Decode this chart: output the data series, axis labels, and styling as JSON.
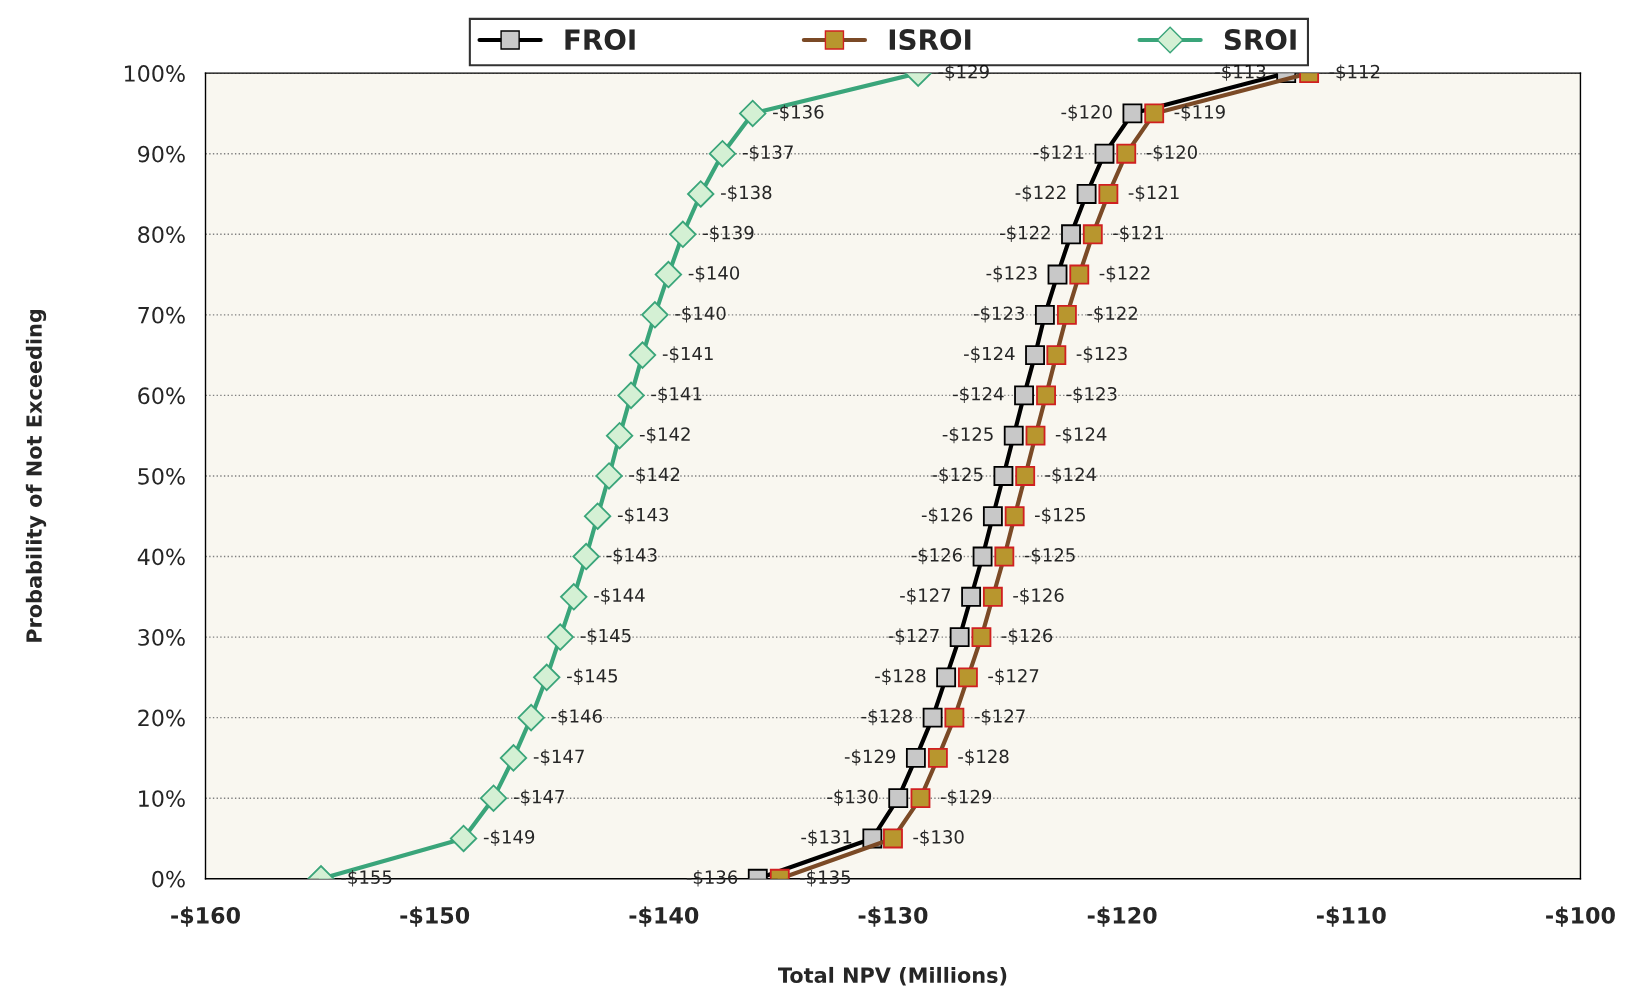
{
  "chart_data": {
    "type": "line",
    "orientation": "horizontal",
    "xlabel": "Total NPV (Millions)",
    "ylabel": "Probability of Not Exceeding",
    "xlim": [
      -160,
      -100
    ],
    "xticks": [
      {
        "value": -160,
        "label": "-$160"
      },
      {
        "value": -150,
        "label": "-$150"
      },
      {
        "value": -140,
        "label": "-$140"
      },
      {
        "value": -130,
        "label": "-$130"
      },
      {
        "value": -120,
        "label": "-$120"
      },
      {
        "value": -110,
        "label": "-$110"
      },
      {
        "value": -100,
        "label": "-$100"
      }
    ],
    "ylim": [
      0,
      100
    ],
    "yticks": [
      {
        "value": 0,
        "label": "0%"
      },
      {
        "value": 10,
        "label": "10%"
      },
      {
        "value": 20,
        "label": "20%"
      },
      {
        "value": 30,
        "label": "30%"
      },
      {
        "value": 40,
        "label": "40%"
      },
      {
        "value": 50,
        "label": "50%"
      },
      {
        "value": 60,
        "label": "60%"
      },
      {
        "value": 70,
        "label": "70%"
      },
      {
        "value": 80,
        "label": "80%"
      },
      {
        "value": 90,
        "label": "90%"
      },
      {
        "value": 100,
        "label": "100%"
      }
    ],
    "grid": "y",
    "legend": "top",
    "line_style": "solid",
    "series": [
      {
        "name": "FROI",
        "color": "#000000",
        "marker": "square",
        "x": [
          0,
          5,
          10,
          15,
          20,
          25,
          30,
          35,
          40,
          45,
          50,
          55,
          60,
          65,
          70,
          75,
          80,
          85,
          90,
          95,
          100
        ],
        "values": [
          -135.9,
          -130.9,
          -129.77,
          -129.0,
          -128.27,
          -127.68,
          -127.09,
          -126.59,
          -126.09,
          -125.64,
          -125.18,
          -124.73,
          -124.28,
          -123.8,
          -123.37,
          -122.82,
          -122.23,
          -121.55,
          -120.77,
          -119.55,
          -112.84
        ],
        "value_labels": [
          "-$136",
          "-$131",
          "-$130",
          "-$129",
          "-$128",
          "-$128",
          "-$127",
          "-$127",
          "-$126",
          "-$126",
          "-$125",
          "-$125",
          "-$124",
          "-$124",
          "-$123",
          "-$123",
          "-$122",
          "-$122",
          "-$121",
          "-$120",
          "-$113"
        ]
      },
      {
        "name": "ISROI",
        "color": "#7b4a26",
        "marker": "square",
        "x": [
          0,
          5,
          10,
          15,
          20,
          25,
          30,
          35,
          40,
          45,
          50,
          55,
          60,
          65,
          70,
          75,
          80,
          85,
          90,
          95,
          100
        ],
        "values": [
          -134.94,
          -130.0,
          -128.8,
          -128.04,
          -127.32,
          -126.73,
          -126.14,
          -125.64,
          -125.14,
          -124.69,
          -124.23,
          -123.78,
          -123.32,
          -122.87,
          -122.41,
          -121.87,
          -121.28,
          -120.6,
          -119.82,
          -118.6,
          -111.84
        ],
        "value_labels": [
          "-$135",
          "-$130",
          "-$129",
          "-$128",
          "-$127",
          "-$127",
          "-$126",
          "-$126",
          "-$125",
          "-$125",
          "-$124",
          "-$124",
          "-$123",
          "-$123",
          "-$122",
          "-$122",
          "-$121",
          "-$121",
          "-$120",
          "-$119",
          "-$112"
        ]
      },
      {
        "name": "SROI",
        "color": "#3aa57a",
        "marker": "diamond",
        "x": [
          0,
          5,
          10,
          15,
          20,
          25,
          30,
          35,
          40,
          45,
          50,
          55,
          60,
          65,
          70,
          75,
          80,
          85,
          90,
          95,
          100
        ],
        "values": [
          -154.96,
          -148.74,
          -147.43,
          -146.56,
          -145.79,
          -145.11,
          -144.52,
          -143.93,
          -143.39,
          -142.89,
          -142.39,
          -141.93,
          -141.43,
          -140.93,
          -140.39,
          -139.8,
          -139.17,
          -138.39,
          -137.44,
          -136.12,
          -128.9
        ],
        "value_labels": [
          "-$155",
          "-$149",
          "-$147",
          "-$147",
          "-$146",
          "-$145",
          "-$145",
          "-$144",
          "-$143",
          "-$143",
          "-$142",
          "-$142",
          "-$141",
          "-$141",
          "-$140",
          "-$140",
          "-$139",
          "-$138",
          "-$137",
          "-$136",
          "-$129"
        ]
      }
    ]
  }
}
